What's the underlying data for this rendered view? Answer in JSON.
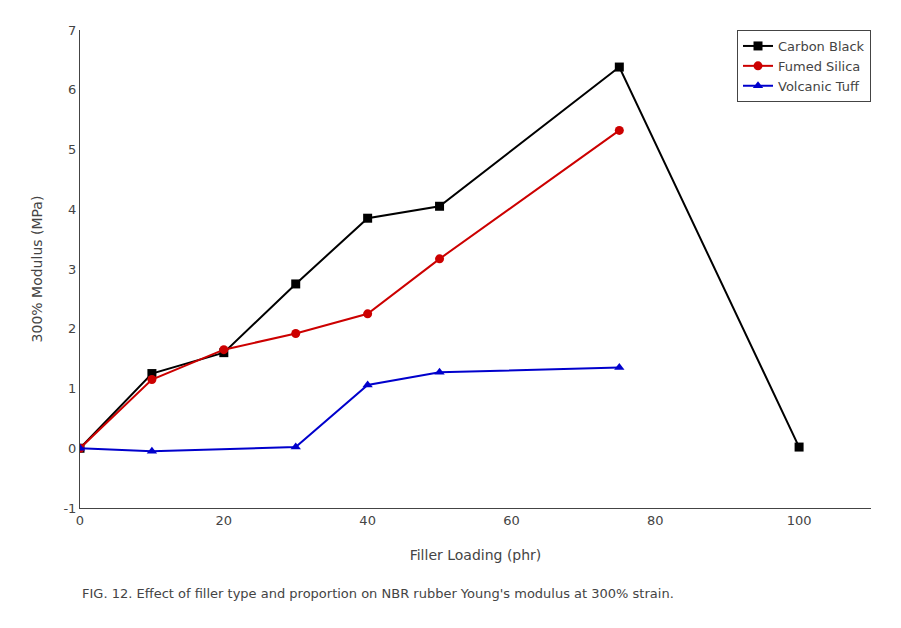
{
  "chart_data": {
    "type": "line",
    "x_label": "Filler Loading (phr)",
    "y_label": "300% Modulus (MPa)",
    "annotations": [
      "FIG. 12. Effect of filler type and proportion on NBR rubber Young's modulus at 300% strain."
    ],
    "series": [
      {
        "name": "Carbon Black",
        "color": "#000000",
        "marker": "square",
        "x": [
          0,
          10,
          20,
          30,
          40,
          50,
          75,
          100
        ],
        "values": [
          0.0,
          1.25,
          1.6,
          2.75,
          3.85,
          4.05,
          6.38,
          0.02
        ]
      },
      {
        "name": "Fumed Silica",
        "color": "#cc0000",
        "marker": "circle",
        "x": [
          0,
          10,
          20,
          30,
          40,
          50,
          75
        ],
        "values": [
          0.0,
          1.15,
          1.65,
          1.92,
          2.25,
          3.17,
          5.32
        ]
      },
      {
        "name": "Volcanic Tuff",
        "color": "#0000cc",
        "marker": "triangle-up",
        "x": [
          0,
          10,
          30,
          40,
          50,
          75
        ],
        "values": [
          0.0,
          -0.05,
          0.02,
          1.06,
          1.27,
          1.35
        ]
      }
    ],
    "xlim": [
      0,
      110
    ],
    "xticks": [
      0,
      20,
      40,
      60,
      80,
      100
    ],
    "ylim": [
      -1,
      7
    ],
    "yticks": [
      -1,
      0,
      1,
      2,
      3,
      4,
      5,
      6,
      7
    ],
    "grid": false,
    "legend": "upper right"
  }
}
